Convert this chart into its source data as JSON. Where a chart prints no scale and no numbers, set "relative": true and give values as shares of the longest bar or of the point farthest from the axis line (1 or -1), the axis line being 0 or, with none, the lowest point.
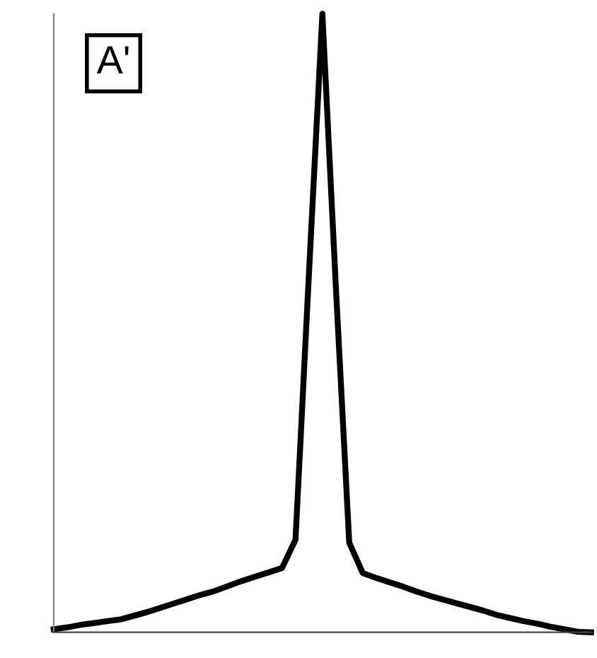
{
  "chart_data": {
    "type": "line",
    "relative": true,
    "categories": [
      null,
      null,
      null,
      null,
      null,
      null,
      null,
      null,
      null,
      null,
      null,
      null,
      null,
      null,
      null,
      null,
      null,
      null,
      null,
      null,
      null,
      null,
      null,
      null,
      null,
      null,
      null,
      null,
      null,
      null,
      null,
      null,
      null,
      null,
      null,
      null,
      null,
      null,
      null,
      null,
      null
    ],
    "series": [
      {
        "color": "#000000",
        "values": [
          0.005,
          0.008,
          0.012,
          0.015,
          0.018,
          0.021,
          0.027,
          0.033,
          0.04,
          0.047,
          0.054,
          0.061,
          0.067,
          0.075,
          0.083,
          0.09,
          0.097,
          0.104,
          0.15,
          0.58,
          1.0,
          0.56,
          0.145,
          0.096,
          0.088,
          0.081,
          0.074,
          0.066,
          0.059,
          0.053,
          0.047,
          0.041,
          0.035,
          0.028,
          0.023,
          0.018,
          0.014,
          0.009,
          0.005,
          0.001,
          0.0
        ]
      }
    ],
    "annotations": [
      "A'"
    ],
    "grid": false,
    "legend": false
  }
}
